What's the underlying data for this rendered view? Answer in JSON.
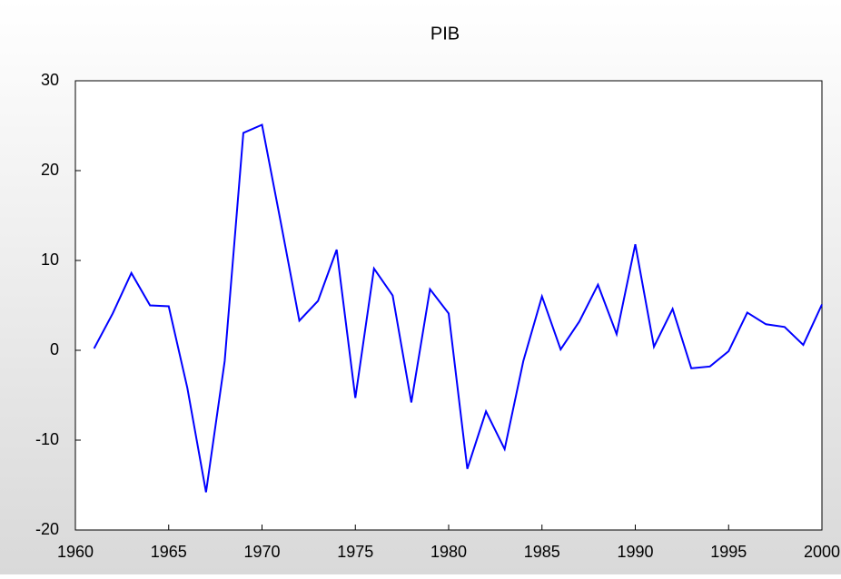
{
  "chart_data": {
    "type": "line",
    "title": "PIB",
    "x": [
      1961,
      1962,
      1963,
      1964,
      1965,
      1966,
      1967,
      1968,
      1969,
      1970,
      1971,
      1972,
      1973,
      1974,
      1975,
      1976,
      1977,
      1978,
      1979,
      1980,
      1981,
      1982,
      1983,
      1984,
      1985,
      1986,
      1987,
      1988,
      1989,
      1990,
      1991,
      1992,
      1993,
      1994,
      1995,
      1996,
      1997,
      1998,
      1999,
      2000
    ],
    "series": [
      {
        "name": "PIB",
        "color": "#0000ff",
        "values": [
          0.2,
          4.1,
          8.6,
          5.0,
          4.9,
          -4.2,
          -15.8,
          -1.2,
          24.2,
          25.1,
          14.3,
          3.3,
          5.5,
          11.2,
          -5.3,
          9.1,
          6.1,
          -5.8,
          6.8,
          4.1,
          -13.2,
          -6.8,
          -11.0,
          -1.2,
          6.0,
          0.1,
          3.2,
          7.3,
          1.8,
          11.8,
          0.4,
          4.6,
          -2.0,
          -1.8,
          -0.1,
          4.2,
          2.9,
          2.6,
          0.6,
          5.1
        ]
      }
    ],
    "xlim": [
      1960,
      2000
    ],
    "xticks": [
      1960,
      1965,
      1970,
      1975,
      1980,
      1985,
      1990,
      1995,
      2000
    ],
    "ylim": [
      -20,
      30
    ],
    "yticks": [
      -20,
      -10,
      0,
      10,
      20,
      30
    ]
  }
}
